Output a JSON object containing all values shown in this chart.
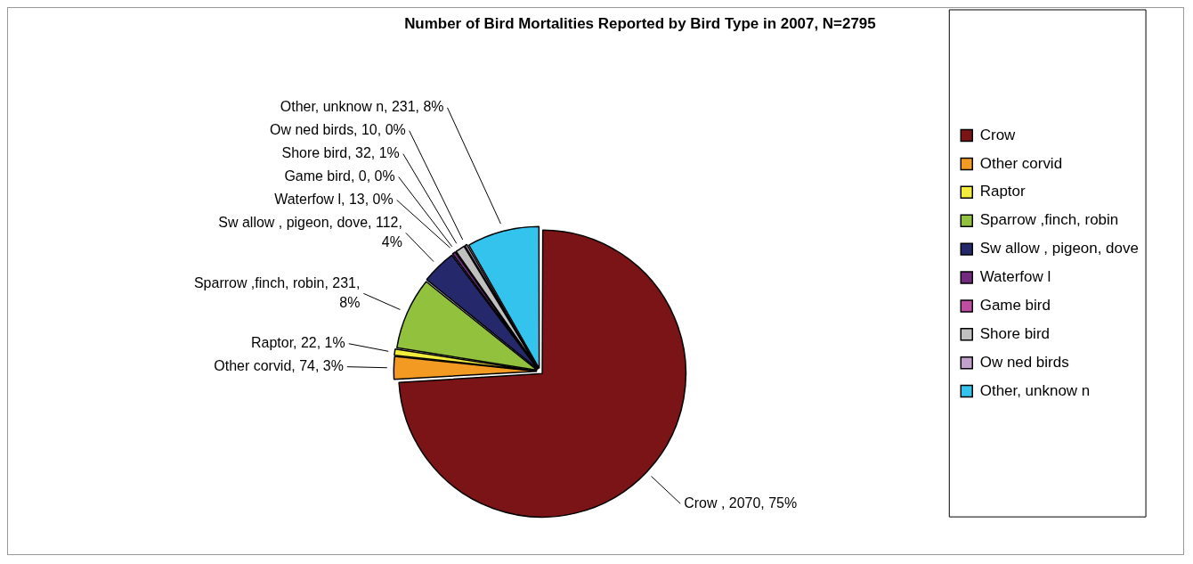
{
  "chart_data": {
    "type": "pie",
    "title": "Number of Bird Mortalities Reported by Bird Type in 2007, N=2795",
    "categories": [
      "Crow",
      "Other corvid",
      "Raptor",
      "Sparrow ,finch, robin",
      "Sw allow , pigeon, dove",
      "Waterfow l",
      "Game bird",
      "Shore bird",
      "Ow ned birds",
      "Other, unknow n"
    ],
    "values": [
      2070,
      74,
      22,
      231,
      112,
      13,
      0,
      32,
      10,
      231
    ],
    "colors": [
      "#7b1416",
      "#f39a22",
      "#f2ec3a",
      "#92c13e",
      "#25286b",
      "#722a7e",
      "#bf4ea3",
      "#c0c0c0",
      "#c2a0cc",
      "#33c3ec"
    ],
    "value_labels": [
      "Crow , 2070, 75%",
      "Other corvid, 74, 3%",
      "Raptor, 22, 1%",
      "Sparrow ,finch, robin, 231, 8%",
      "Sw allow , pigeon, dove, 112, 4%",
      "Waterfow l, 13, 0%",
      "Game bird, 0, 0%",
      "Shore bird, 32, 1%",
      "Ow ned birds, 10, 0%",
      "Other, unknow n, 231, 8%"
    ],
    "legend": "right"
  }
}
